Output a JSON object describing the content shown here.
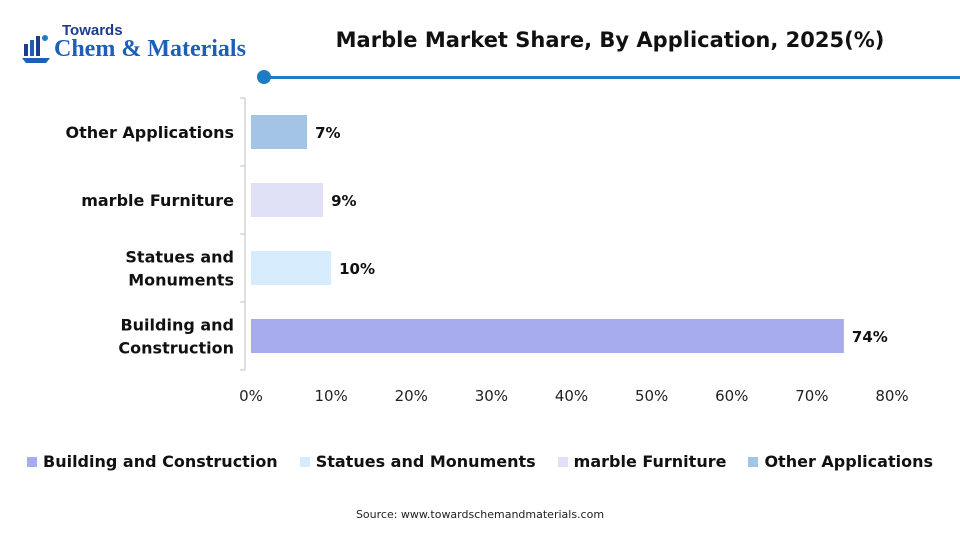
{
  "logo": {
    "top_text": "Towards",
    "main_text": "Chem & Materials"
  },
  "colors": {
    "accent": "#1e7cc2",
    "bar_building": "#a7acee",
    "bar_statues": "#d6ebfb",
    "bar_furniture": "#e0e0f7",
    "bar_other": "#a3c4e4"
  },
  "chart_data": {
    "type": "bar",
    "orientation": "horizontal",
    "title": "Marble Market Share, By Application, 2025(%)",
    "categories": [
      "Building and Construction",
      "Statues and Monuments",
      "marble Furniture",
      "Other Applications"
    ],
    "category_label_lines": [
      [
        "Building and",
        "Construction"
      ],
      [
        "Statues and",
        "Monuments"
      ],
      [
        "marble Furniture"
      ],
      [
        "Other Applications"
      ]
    ],
    "values": [
      74,
      10,
      9,
      7
    ],
    "data_labels": [
      "74%",
      "10%",
      "9%",
      "7%"
    ],
    "bar_colors": [
      "#a7acee",
      "#d6ebfb",
      "#e0e0f7",
      "#a3c4e4"
    ],
    "xlim": [
      0,
      80
    ],
    "xticks": [
      0,
      10,
      20,
      30,
      40,
      50,
      60,
      70,
      80
    ],
    "xtick_labels": [
      "0%",
      "10%",
      "20%",
      "30%",
      "40%",
      "50%",
      "60%",
      "70%",
      "80%"
    ],
    "xlabel": "",
    "ylabel": "",
    "grid": false,
    "legend_position": "bottom"
  },
  "legend": [
    {
      "label": "Building and Construction",
      "color": "#a7acee"
    },
    {
      "label": "Statues and Monuments",
      "color": "#d6ebfb"
    },
    {
      "label": "marble Furniture",
      "color": "#e0e0f7"
    },
    {
      "label": "Other Applications",
      "color": "#a3c4e4"
    }
  ],
  "source": "Source:  www.towardschemandmaterials.com"
}
